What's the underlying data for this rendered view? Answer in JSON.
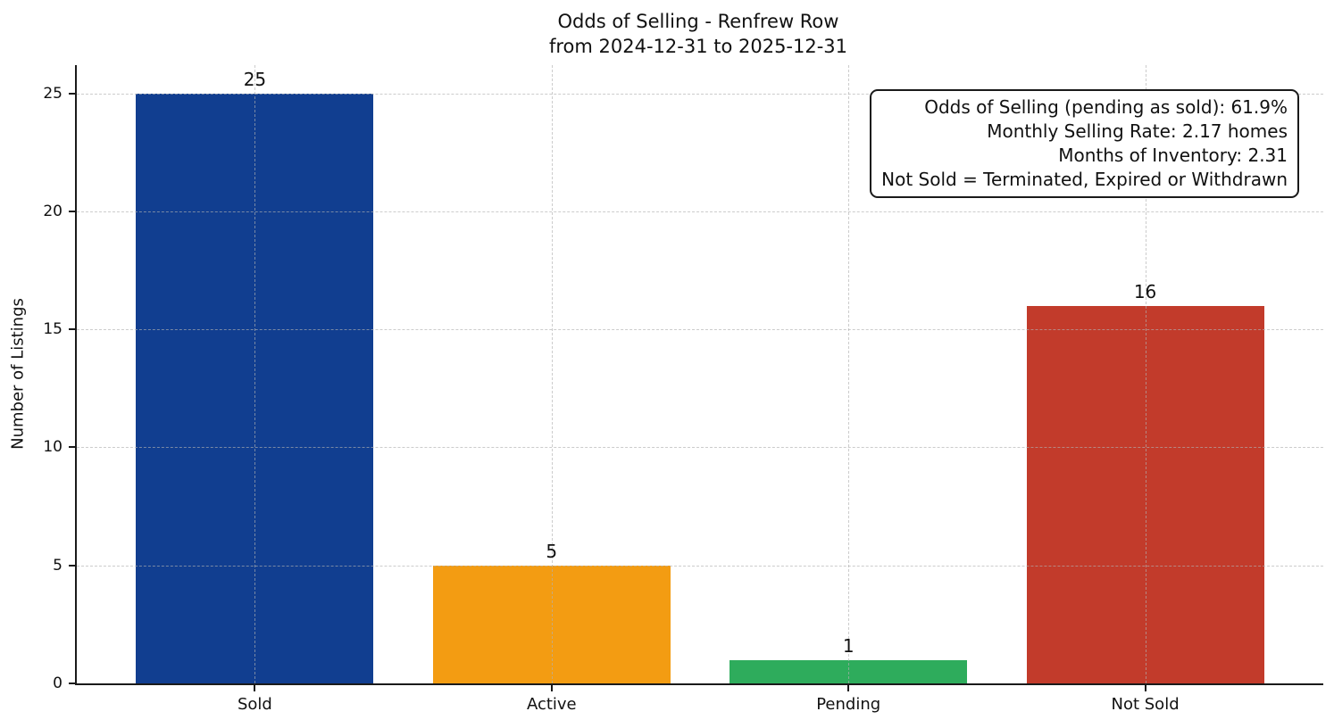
{
  "chart_data": {
    "type": "bar",
    "title_line1": "Odds of Selling - Renfrew Row",
    "title_line2": "from 2024-12-31 to 2025-12-31",
    "ylabel": "Number of Listings",
    "xlabel": "",
    "categories": [
      "Sold",
      "Active",
      "Pending",
      "Not Sold"
    ],
    "values": [
      25,
      5,
      1,
      16
    ],
    "bar_colors": [
      "#113e90",
      "#f39c12",
      "#2eac5c",
      "#c23b2b"
    ],
    "yticks": [
      0,
      5,
      10,
      15,
      20,
      25
    ],
    "ylim": [
      0,
      26.2
    ],
    "grid": true,
    "grid_style": "dashed",
    "legend_position": "none",
    "annotation_lines": [
      "Odds of Selling (pending as sold): 61.9%",
      "Monthly Selling Rate: 2.17 homes",
      "Months of Inventory: 2.31",
      "Not Sold = Terminated, Expired or Withdrawn"
    ]
  }
}
